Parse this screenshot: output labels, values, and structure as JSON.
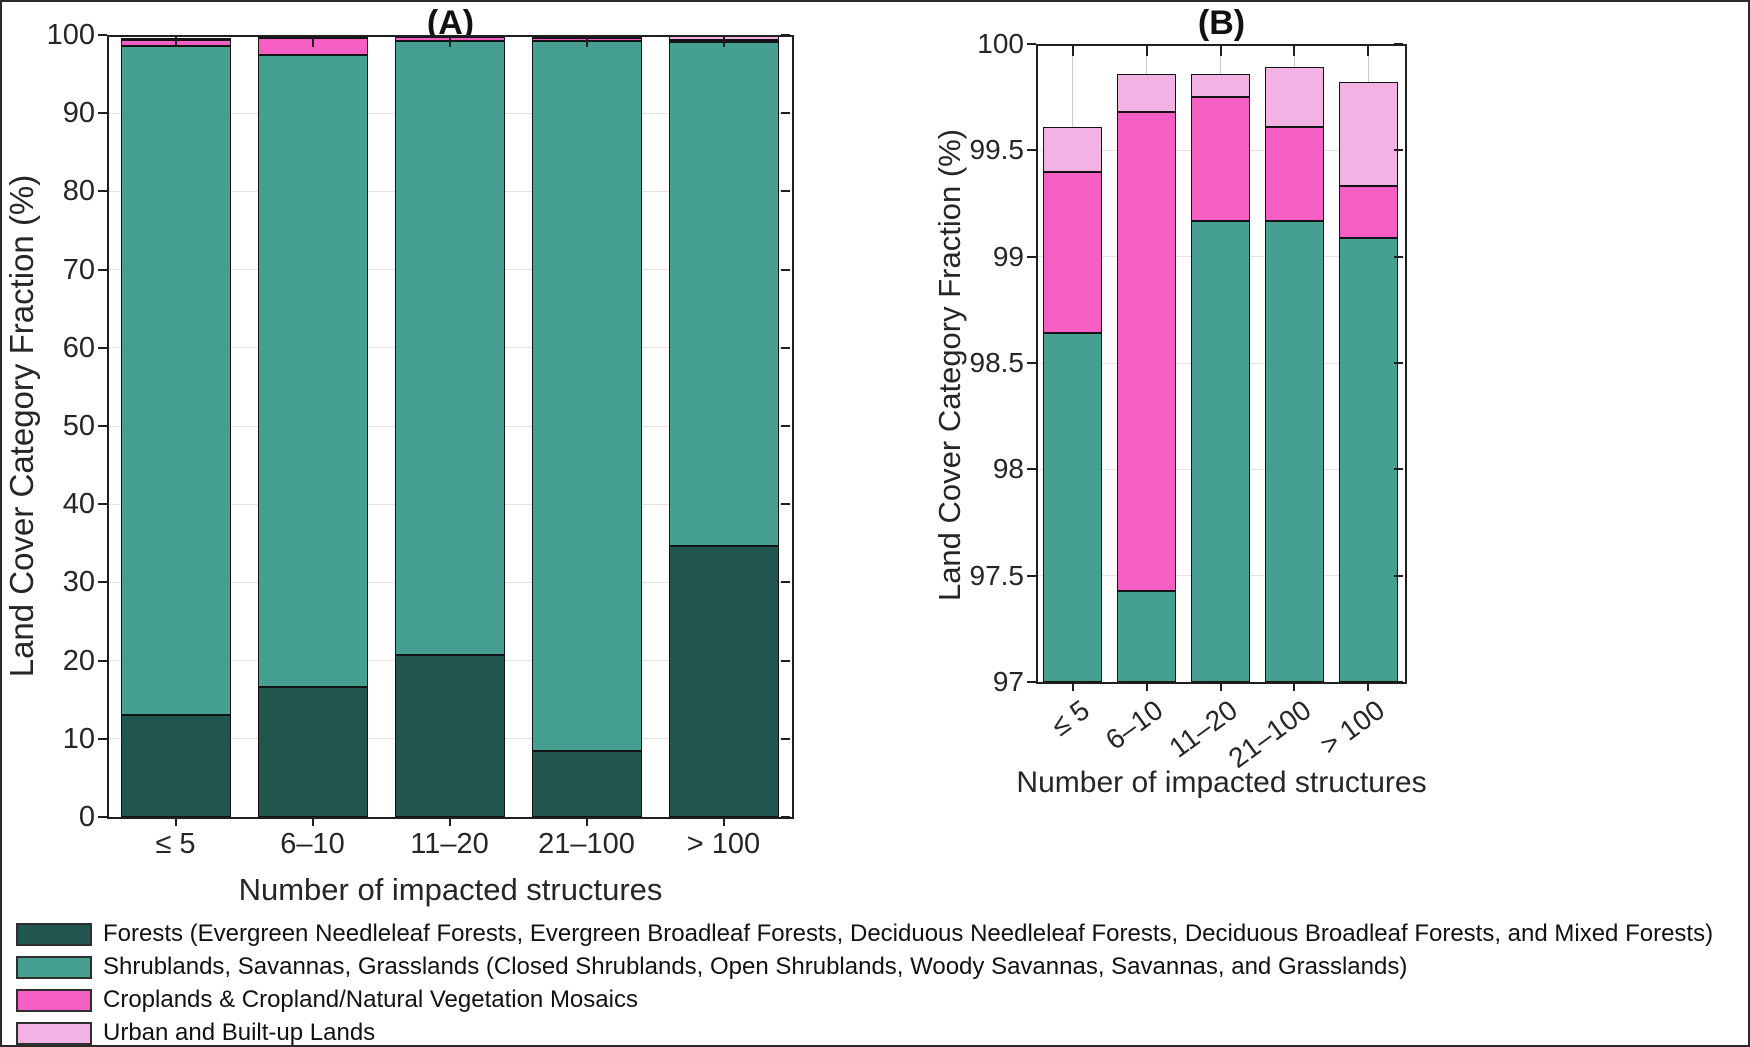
{
  "chart_data": [
    {
      "id": "A",
      "type": "bar",
      "stacked": true,
      "title": "(A)",
      "xlabel": "Number of impacted structures",
      "ylabel": "Land Cover Category Fraction (%)",
      "categories": [
        "≤ 5",
        "6–10",
        "11–20",
        "21–100",
        "> 100"
      ],
      "ylim": [
        0,
        100
      ],
      "yticks": [
        0,
        10,
        20,
        30,
        40,
        50,
        60,
        70,
        80,
        90,
        100
      ],
      "ytick_labels": [
        "0",
        "10",
        "20",
        "30",
        "40",
        "50",
        "60",
        "70",
        "80",
        "90",
        "100"
      ],
      "grid": "horizontal",
      "legend_position": "below-figure",
      "series": [
        {
          "key": "forests",
          "name": "Forests",
          "color": "#21564e",
          "values": [
            13.0,
            16.6,
            20.7,
            8.4,
            34.6
          ]
        },
        {
          "key": "shrublands",
          "name": "Shrublands, Savannas, Grasslands",
          "color": "#45a092",
          "values": [
            85.64,
            80.83,
            78.47,
            90.77,
            64.49
          ]
        },
        {
          "key": "croplands",
          "name": "Croplands & Cropland/Natural Vegetation Mosaics",
          "color": "#f55fc4",
          "values": [
            0.76,
            2.25,
            0.58,
            0.44,
            0.24
          ]
        },
        {
          "key": "urban",
          "name": "Urban and Built-up Lands",
          "color": "#f2b2e3",
          "values": [
            0.21,
            0.18,
            0.11,
            0.28,
            0.49
          ]
        }
      ],
      "stack_totals": [
        99.61,
        99.86,
        99.86,
        99.89,
        99.82
      ]
    },
    {
      "id": "B",
      "type": "bar",
      "stacked": true,
      "title": "(B)",
      "xlabel": "Number of impacted structures",
      "ylabel": "Land Cover Category Fraction (%)",
      "categories": [
        "≤ 5",
        "6–10",
        "11–20",
        "21–100",
        "> 100"
      ],
      "ylim": [
        97,
        100
      ],
      "yticks": [
        97,
        97.5,
        98,
        98.5,
        99,
        99.5,
        100
      ],
      "ytick_labels": [
        "97",
        "97.5",
        "98",
        "98.5",
        "99",
        "99.5",
        "100"
      ],
      "grid": "both",
      "xtick_rotation": -36,
      "series": [
        {
          "key": "forests",
          "name": "Forests",
          "color": "#21564e",
          "values": [
            13.0,
            16.6,
            20.7,
            8.4,
            34.6
          ]
        },
        {
          "key": "shrublands",
          "name": "Shrublands, Savannas, Grasslands",
          "color": "#45a092",
          "values": [
            85.64,
            80.83,
            78.47,
            90.77,
            64.49
          ]
        },
        {
          "key": "croplands",
          "name": "Croplands & Cropland/Natural Vegetation Mosaics",
          "color": "#f55fc4",
          "values": [
            0.76,
            2.25,
            0.58,
            0.44,
            0.24
          ]
        },
        {
          "key": "urban",
          "name": "Urban and Built-up Lands",
          "color": "#f2b2e3",
          "values": [
            0.21,
            0.18,
            0.11,
            0.28,
            0.49
          ]
        }
      ],
      "cumulative_tops": {
        "shrublands": [
          98.64,
          97.43,
          99.17,
          99.17,
          99.09
        ],
        "croplands": [
          99.4,
          99.68,
          99.75,
          99.61,
          99.33
        ],
        "urban": [
          99.61,
          99.86,
          99.86,
          99.89,
          99.82
        ]
      }
    }
  ],
  "legend": {
    "items": [
      {
        "label": "Forests (Evergreen Needleleaf Forests, Evergreen Broadleaf Forests, Deciduous Needleleaf Forests, Deciduous Broadleaf Forests, and Mixed Forests)",
        "color": "#21564e"
      },
      {
        "label": "Shrublands, Savannas, Grasslands (Closed Shrublands, Open Shrublands, Woody Savannas, Savannas, and Grasslands)",
        "color": "#45a092"
      },
      {
        "label": "Croplands & Cropland/Natural Vegetation Mosaics",
        "color": "#f55fc4"
      },
      {
        "label": "Urban and Built-up Lands",
        "color": "#f2b2e3"
      }
    ]
  }
}
